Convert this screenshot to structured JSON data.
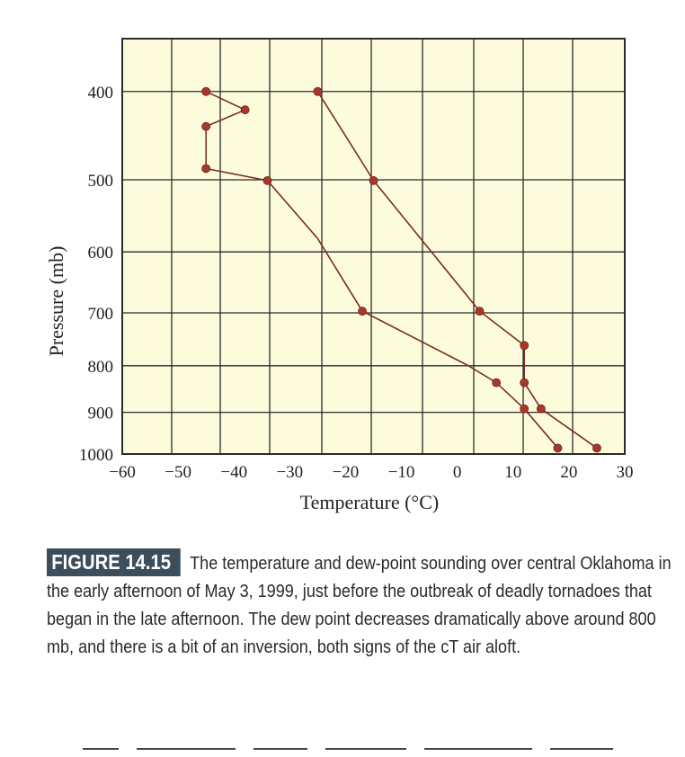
{
  "chart_data": {
    "type": "line",
    "xlabel": "Temperature (°C)",
    "ylabel": "Pressure (mb)",
    "xlim": [
      -60,
      30
    ],
    "ylim": [
      1000,
      350
    ],
    "x_ticks": [
      "−60",
      "−50",
      "−40",
      "−30",
      "−20",
      "−10",
      "0",
      "10",
      "20",
      "30"
    ],
    "x_tick_values": [
      -60,
      -50,
      -40,
      -30,
      -20,
      -10,
      0,
      10,
      20,
      30
    ],
    "y_ticks": [
      "400",
      "500",
      "600",
      "700",
      "800",
      "900",
      "1000"
    ],
    "y_tick_values": [
      400,
      500,
      600,
      700,
      800,
      900,
      1000
    ],
    "grid": true,
    "series": [
      {
        "name": "Temperature",
        "color": "#7a2e22",
        "points": [
          {
            "t": 25,
            "p": 985
          },
          {
            "t": 15,
            "p": 892
          },
          {
            "t": 12,
            "p": 835
          },
          {
            "t": 12,
            "p": 760
          },
          {
            "t": 4,
            "p": 697
          },
          {
            "t": -15,
            "p": 501
          },
          {
            "t": -25,
            "p": 400
          }
        ],
        "markers": [
          true,
          true,
          true,
          true,
          true,
          true,
          true
        ]
      },
      {
        "name": "Dew point",
        "color": "#7a2e22",
        "points": [
          {
            "t": 18,
            "p": 985
          },
          {
            "t": 12,
            "p": 892
          },
          {
            "t": 7,
            "p": 835
          },
          {
            "t": 2,
            "p": 800
          },
          {
            "t": -17,
            "p": 697
          },
          {
            "t": -25,
            "p": 580
          },
          {
            "t": -34,
            "p": 501
          },
          {
            "t": -45,
            "p": 486
          },
          {
            "t": -45,
            "p": 437
          },
          {
            "t": -38,
            "p": 419
          },
          {
            "t": -45,
            "p": 400
          }
        ],
        "markers": [
          true,
          true,
          true,
          false,
          true,
          false,
          true,
          true,
          true,
          true,
          true
        ]
      }
    ]
  },
  "caption": {
    "figure_label": "FIGURE 14.15",
    "text": "The temperature and dew-point sounding over central Oklahoma in the early afternoon of May 3, 1999, just before the outbreak of deadly tornadoes that began in the late afternoon. The dew point decreases dramatically above around 800 mb, and there is a bit of an inversion, both signs of the cT air aloft."
  },
  "colors": {
    "plot_background": "#fcfbdc",
    "grid": "#2b2b2b",
    "line": "#7a2e22",
    "marker": "#a8382a",
    "label_bg": "#3c4e5c"
  }
}
